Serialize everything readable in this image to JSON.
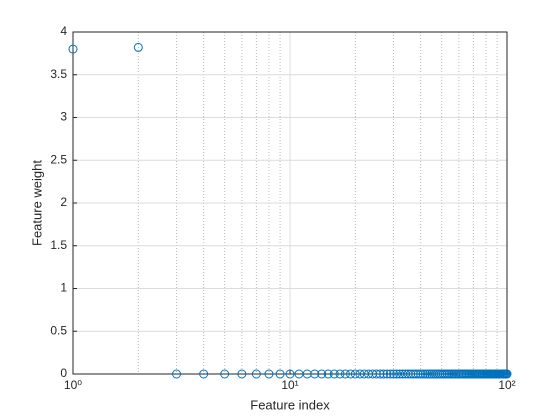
{
  "chart_data": {
    "type": "scatter",
    "xlabel": "Feature index",
    "ylabel": "Feature weight",
    "x": [
      1,
      2,
      3,
      4,
      5,
      6,
      7,
      8,
      9,
      10,
      11,
      12,
      13,
      14,
      15,
      16,
      17,
      18,
      19,
      20,
      21,
      22,
      23,
      24,
      25,
      26,
      27,
      28,
      29,
      30,
      31,
      32,
      33,
      34,
      35,
      36,
      37,
      38,
      39,
      40,
      41,
      42,
      43,
      44,
      45,
      46,
      47,
      48,
      49,
      50,
      51,
      52,
      53,
      54,
      55,
      56,
      57,
      58,
      59,
      60,
      61,
      62,
      63,
      64,
      65,
      66,
      67,
      68,
      69,
      70,
      71,
      72,
      73,
      74,
      75,
      76,
      77,
      78,
      79,
      80,
      81,
      82,
      83,
      84,
      85,
      86,
      87,
      88,
      89,
      90,
      91,
      92,
      93,
      94,
      95,
      96,
      97,
      98,
      99,
      100
    ],
    "values": [
      3.8,
      3.82,
      0,
      0,
      0,
      0,
      0,
      0,
      0,
      0,
      0,
      0,
      0,
      0,
      0,
      0,
      0,
      0,
      0,
      0,
      0,
      0,
      0,
      0,
      0,
      0,
      0,
      0,
      0,
      0,
      0,
      0,
      0,
      0,
      0,
      0,
      0,
      0,
      0,
      0,
      0,
      0,
      0,
      0,
      0,
      0,
      0,
      0,
      0,
      0,
      0,
      0,
      0,
      0,
      0,
      0,
      0,
      0,
      0,
      0,
      0,
      0,
      0,
      0,
      0,
      0,
      0,
      0,
      0,
      0,
      0,
      0,
      0,
      0,
      0,
      0,
      0,
      0,
      0,
      0,
      0,
      0,
      0,
      0,
      0,
      0,
      0,
      0,
      0,
      0,
      0,
      0,
      0,
      0,
      0,
      0,
      0,
      0,
      0,
      0
    ],
    "color": "#0072BD",
    "xscale": "log",
    "xlim": [
      1,
      100
    ],
    "xticks": [
      {
        "value": 1,
        "label": "10⁰"
      },
      {
        "value": 10,
        "label": "10¹"
      },
      {
        "value": 100,
        "label": "10²"
      }
    ],
    "xminorticks": [
      2,
      3,
      4,
      5,
      6,
      7,
      8,
      9,
      20,
      30,
      40,
      50,
      60,
      70,
      80,
      90
    ],
    "ylim": [
      0,
      4
    ],
    "yticks": [
      0,
      0.5,
      1,
      1.5,
      2,
      2.5,
      3,
      3.5,
      4
    ],
    "grid": true
  }
}
